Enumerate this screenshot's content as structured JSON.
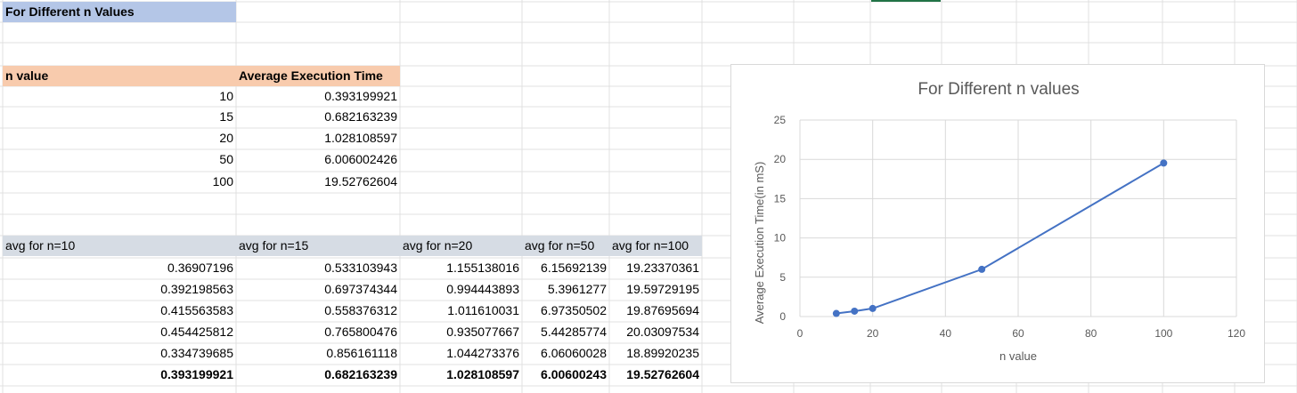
{
  "sheet": {
    "header_title": "For Different n Values",
    "summary_table": {
      "col_headers": [
        "n value",
        "Average Execution Time"
      ],
      "rows": [
        {
          "n": "10",
          "avg": "0.393199921"
        },
        {
          "n": "15",
          "avg": "0.682163239"
        },
        {
          "n": "20",
          "avg": "1.028108597"
        },
        {
          "n": "50",
          "avg": "6.006002426"
        },
        {
          "n": "100",
          "avg": "19.52762604"
        }
      ]
    },
    "runs_table": {
      "col_headers": [
        "avg for n=10",
        "avg for n=15",
        "avg for n=20",
        "avg for n=50",
        "avg for n=100"
      ],
      "rows": [
        [
          "0.36907196",
          "0.533103943",
          "1.155138016",
          "6.15692139",
          "19.23370361"
        ],
        [
          "0.392198563",
          "0.697374344",
          "0.994443893",
          "5.3961277",
          "19.59729195"
        ],
        [
          "0.415563583",
          "0.558376312",
          "1.011610031",
          "6.97350502",
          "19.87695694"
        ],
        [
          "0.454425812",
          "0.765800476",
          "0.935077667",
          "5.44285774",
          "20.03097534"
        ],
        [
          "0.334739685",
          "0.856161118",
          "1.044273376",
          "6.06060028",
          "18.89920235"
        ]
      ],
      "average_row": [
        "0.393199921",
        "0.682163239",
        "1.028108597",
        "6.00600243",
        "19.52762604"
      ]
    },
    "colors": {
      "title_fill": "#b4c6e7",
      "summary_header_fill": "#f8cbad",
      "runs_header_fill": "#d6dce4",
      "gridline": "#e1e1e1",
      "selection": "#217346"
    }
  },
  "chart_data": {
    "type": "scatter",
    "title": "For Different n values",
    "xlabel": "n value",
    "ylabel": "Average Execution Time(in mS)",
    "xlim": [
      0,
      120
    ],
    "ylim": [
      0,
      25
    ],
    "xticks": [
      0,
      20,
      40,
      60,
      80,
      100,
      120
    ],
    "yticks": [
      0,
      5,
      10,
      15,
      20,
      25
    ],
    "grid": true,
    "legend": "none",
    "series": [
      {
        "x": [
          10,
          15,
          20,
          50,
          100
        ],
        "y": [
          0.393199921,
          0.682163239,
          1.028108597,
          6.006002426,
          19.52762604
        ],
        "color": "#4472c4"
      }
    ]
  }
}
